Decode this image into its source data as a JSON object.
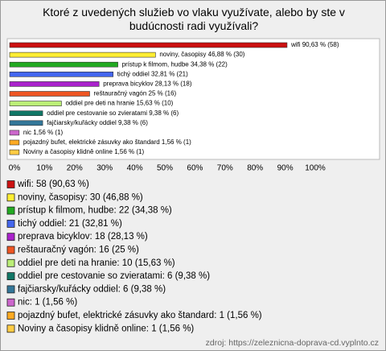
{
  "chart_data": {
    "type": "bar",
    "orientation": "horizontal",
    "title": "Ktoré z uvedených služieb vo vlaku využívate, alebo by ste v budúcnosti radi využívali?",
    "values": [
      90.63,
      46.88,
      34.38,
      32.81,
      28.13,
      25,
      15.63,
      9.38,
      9.38,
      1.56,
      1.56,
      1.56
    ],
    "value_labels": [
      "wifi 90,63 % (58)",
      "noviny, časopisy 46,88 % (30)",
      "prístup k filmom, hudbe 34,38 % (22)",
      "tichý oddiel 32,81 % (21)",
      "preprava bicyklov 28,13 % (18)",
      "reštauračný vagón 25 % (16)",
      "oddiel pre deti na hranie 15,63 % (10)",
      "oddiel pre cestovanie so zvieratami 9,38 % (6)",
      "fajčiarsky/kuřácky oddiel 9,38 % (6)",
      "nic 1,56 % (1)",
      "pojazdný bufet, elektrické zásuvky ako štandard 1,56 % (1)",
      "Noviny a časopisy klidně online 1,56 % (1)"
    ],
    "legend_labels": [
      "wifi: 58 (90,63 %)",
      "noviny, časopisy: 30 (46,88 %)",
      "prístup k filmom, hudbe: 22 (34,38 %)",
      "tichý oddiel: 21 (32,81 %)",
      "preprava bicyklov: 18 (28,13 %)",
      "reštauračný vagón: 16 (25 %)",
      "oddiel pre deti na hranie: 10 (15,63 %)",
      "oddiel pre cestovanie so zvieratami: 6 (9,38 %)",
      "fajčiarsky/kuřácky oddiel: 6 (9,38 %)",
      "nic: 1 (1,56 %)",
      "pojazdný bufet, elektrické zásuvky ako štandard: 1 (1,56 %)",
      "Noviny a časopisy klidně online: 1 (1,56 %)"
    ],
    "colors": [
      "#cc1111",
      "#ffee33",
      "#22aa22",
      "#4466ee",
      "#aa22cc",
      "#ee5522",
      "#bbee77",
      "#117766",
      "#337799",
      "#cc66cc",
      "#ffaa22",
      "#ffcc44"
    ],
    "xlim": [
      0,
      100
    ],
    "xticks": [
      {
        "value": 0,
        "label": "0%"
      },
      {
        "value": 10,
        "label": "10%"
      },
      {
        "value": 20,
        "label": "20%"
      },
      {
        "value": 30,
        "label": "30%"
      },
      {
        "value": 40,
        "label": "40%"
      },
      {
        "value": 50,
        "label": "50%"
      },
      {
        "value": 60,
        "label": "60%"
      },
      {
        "value": 70,
        "label": "70%"
      },
      {
        "value": 80,
        "label": "80%"
      },
      {
        "value": 90,
        "label": "90%"
      },
      {
        "value": 100,
        "label": "100%"
      }
    ],
    "source": "zdroj: https://zeleznicna-doprava-cd.vyplnto.cz"
  }
}
